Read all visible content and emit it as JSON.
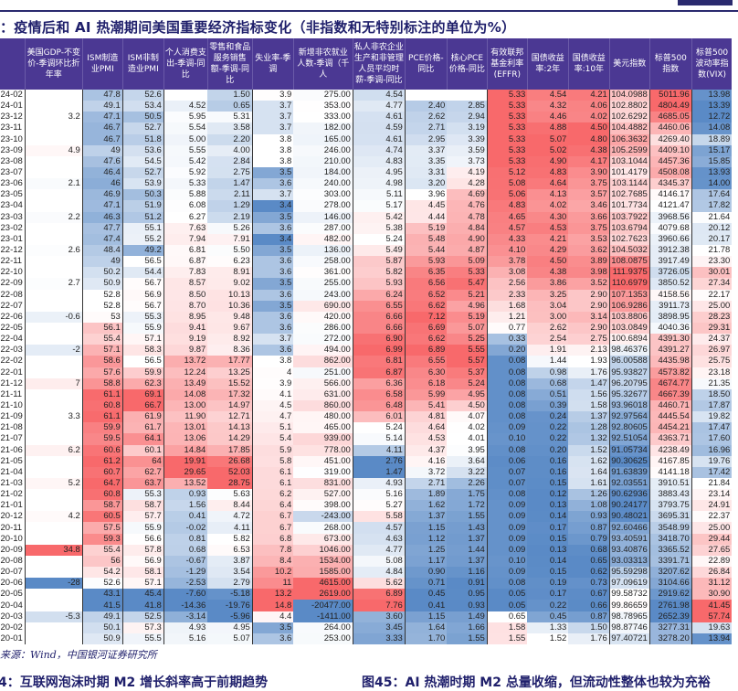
{
  "title": "：疫情后和 AI 热潮期间美国重要经济指标变化（非指数和无特别标注的单位为%）",
  "columns": [
    "",
    "美国GDP-不变价-季调环比折年率",
    "ISM制造业PMI",
    "ISM非制造业PMI",
    "个人消费支出-季调-同比",
    "零售和食品服务销售额-季调-同比",
    "失业率-季调",
    "新增非农就业人数-季调（千人",
    "私人非农企业生产和非管理人员平均时薪-季调-同比",
    "PCE价格-同比",
    "核心PCE价格-同比",
    "有效联邦基金利率(EFFR)",
    "国债收益率:2年",
    "国债收益率:10年",
    "美元指数",
    "标普500指数",
    "标普500波动率指数(VIX)"
  ],
  "rows": [
    [
      "24-02",
      "",
      "47.8",
      "52.6",
      "",
      "1.50",
      "3.9",
      "275.00",
      "4.54",
      "",
      "",
      "5.33",
      "4.54",
      "4.21",
      "104.0988",
      "5011.96",
      "13.98"
    ],
    [
      "24-01",
      "",
      "49.1",
      "53.4",
      "4.52",
      "0.65",
      "3.7",
      "353.00",
      "4.77",
      "2.40",
      "2.85",
      "5.33",
      "4.32",
      "4.06",
      "102.8802",
      "4804.49",
      "13.39"
    ],
    [
      "23-12",
      "3.2",
      "47.1",
      "50.5",
      "5.95",
      "5.31",
      "3.7",
      "333.00",
      "4.61",
      "2.62",
      "2.94",
      "5.33",
      "4.46",
      "4.02",
      "102.6292",
      "4685.05",
      "12.72"
    ],
    [
      "23-11",
      "",
      "46.7",
      "52.7",
      "5.54",
      "3.58",
      "3.7",
      "182.00",
      "4.59",
      "2.71",
      "3.19",
      "5.33",
      "4.88",
      "4.50",
      "104.4882",
      "4460.06",
      "14.08"
    ],
    [
      "23-10",
      "",
      "46.7",
      "51.8",
      "5.00",
      "2.20",
      "3.8",
      "165.00",
      "4.61",
      "2.95",
      "3.39",
      "5.33",
      "5.07",
      "4.80",
      "106.3632",
      "4269.40",
      "18.89"
    ],
    [
      "23-09",
      "4.9",
      "49",
      "53.6",
      "5.55",
      "4.00",
      "3.8",
      "246.00",
      "4.74",
      "3.37",
      "3.59",
      "5.33",
      "5.02",
      "4.38",
      "105.2599",
      "4409.10",
      "15.17"
    ],
    [
      "23-08",
      "",
      "47.6",
      "54.5",
      "5.42",
      "2.84",
      "3.8",
      "210.00",
      "4.83",
      "3.35",
      "3.73",
      "5.33",
      "4.90",
      "4.17",
      "103.1044",
      "4457.36",
      "15.85"
    ],
    [
      "23-07",
      "",
      "46.4",
      "52.7",
      "5.92",
      "2.75",
      "3.5",
      "184.00",
      "4.95",
      "3.31",
      "4.19",
      "5.12",
      "4.83",
      "3.90",
      "101.4179",
      "4508.08",
      "13.93"
    ],
    [
      "23-06",
      "2.1",
      "46",
      "53.9",
      "5.33",
      "1.47",
      "3.6",
      "240.00",
      "4.98",
      "3.20",
      "4.28",
      "5.08",
      "4.64",
      "3.75",
      "103.1144",
      "4345.37",
      "14.00"
    ],
    [
      "23-05",
      "",
      "46.9",
      "50.3",
      "5.88",
      "2.11",
      "3.7",
      "303.00",
      "5.11",
      "3.96",
      "4.69",
      "5.06",
      "4.13",
      "3.57",
      "102.7685",
      "4146.17",
      "17.64"
    ],
    [
      "23-04",
      "",
      "47.1",
      "51.9",
      "6.08",
      "1.29",
      "3.4",
      "278.00",
      "5.17",
      "4.45",
      "4.76",
      "4.83",
      "4.02",
      "3.46",
      "101.7734",
      "4121.47",
      "17.82"
    ],
    [
      "23-03",
      "2.2",
      "46.3",
      "51.2",
      "6.27",
      "2.19",
      "3.5",
      "146.00",
      "5.42",
      "4.44",
      "4.78",
      "4.65",
      "4.30",
      "3.66",
      "103.7922",
      "3968.56",
      "21.64"
    ],
    [
      "23-02",
      "",
      "47.7",
      "55.1",
      "7.63",
      "5.26",
      "3.6",
      "287.00",
      "5.38",
      "5.19",
      "4.84",
      "4.57",
      "4.53",
      "3.75",
      "103.6794",
      "4079.68",
      "20.12"
    ],
    [
      "23-01",
      "",
      "47.4",
      "55.2",
      "7.94",
      "7.91",
      "3.4",
      "482.00",
      "5.24",
      "5.48",
      "4.90",
      "4.33",
      "4.21",
      "3.53",
      "102.7623",
      "3960.66",
      "20.17"
    ],
    [
      "22-12",
      "2.6",
      "48.4",
      "49.2",
      "6.81",
      "5.50",
      "3.5",
      "136.00",
      "5.49",
      "5.44",
      "4.87",
      "4.10",
      "4.29",
      "3.62",
      "104.5032",
      "3912.38",
      "21.78"
    ],
    [
      "22-11",
      "",
      "49",
      "56.5",
      "6.87",
      "6.23",
      "3.6",
      "258.00",
      "5.87",
      "5.93",
      "5.09",
      "3.78",
      "4.50",
      "3.89",
      "108.0875",
      "3917.49",
      "23.30"
    ],
    [
      "22-10",
      "",
      "50.2",
      "54.4",
      "7.83",
      "8.91",
      "3.6",
      "361.00",
      "5.82",
      "6.35",
      "5.33",
      "3.08",
      "4.38",
      "3.98",
      "111.9375",
      "3726.05",
      "30.01"
    ],
    [
      "22-09",
      "2.7",
      "50.9",
      "56.7",
      "8.57",
      "9.02",
      "3.5",
      "255.00",
      "5.93",
      "6.56",
      "5.47",
      "2.56",
      "3.86",
      "3.52",
      "110.6979",
      "3850.52",
      "27.34"
    ],
    [
      "22-08",
      "",
      "52.8",
      "56.9",
      "8.50",
      "10.13",
      "3.6",
      "243.00",
      "6.24",
      "6.52",
      "5.21",
      "2.33",
      "3.25",
      "2.90",
      "107.1353",
      "4158.56",
      "22.17"
    ],
    [
      "22-07",
      "",
      "52.8",
      "56.7",
      "8.70",
      "10.36",
      "3.5",
      "690.00",
      "6.55",
      "6.62",
      "4.96",
      "1.68",
      "3.04",
      "2.90",
      "106.9286",
      "3911.73",
      "25.00"
    ],
    [
      "22-06",
      "-0.6",
      "53",
      "55.3",
      "8.95",
      "9.48",
      "3.6",
      "420.00",
      "6.66",
      "7.12",
      "5.19",
      "1.21",
      "3.00",
      "3.14",
      "103.8806",
      "3898.95",
      "28.23"
    ],
    [
      "22-05",
      "",
      "56.1",
      "55.9",
      "9.41",
      "9.67",
      "3.6",
      "286.00",
      "6.66",
      "6.69",
      "5.07",
      "0.77",
      "2.62",
      "2.90",
      "103.0849",
      "4040.36",
      "29.31"
    ],
    [
      "22-04",
      "",
      "55.4",
      "57.1",
      "9.19",
      "8.92",
      "3.7",
      "272.00",
      "6.90",
      "6.62",
      "5.25",
      "0.33",
      "2.54",
      "2.75",
      "100.6894",
      "4391.30",
      "24.37"
    ],
    [
      "22-03",
      "-2",
      "57.1",
      "58.3",
      "9.87",
      "8.36",
      "3.6",
      "494.00",
      "6.99",
      "6.89",
      "5.55",
      "0.20",
      "1.91",
      "2.13",
      "98.46376",
      "4391.27",
      "26.97"
    ],
    [
      "22-02",
      "",
      "58.6",
      "56.5",
      "13.72",
      "17.77",
      "3.8",
      "862.00",
      "6.81",
      "6.55",
      "5.57",
      "0.08",
      "1.44",
      "1.93",
      "96.00588",
      "4435.98",
      "25.75"
    ],
    [
      "22-01",
      "",
      "57.6",
      "59.9",
      "12.24",
      "13.25",
      "4",
      "251.00",
      "6.87",
      "6.30",
      "5.37",
      "0.08",
      "0.98",
      "1.76",
      "95.93827",
      "4573.82",
      "23.18"
    ],
    [
      "21-12",
      "7",
      "58.8",
      "62.3",
      "13.49",
      "15.52",
      "3.9",
      "566.00",
      "6.36",
      "6.18",
      "5.24",
      "0.08",
      "0.68",
      "1.47",
      "96.20795",
      "4674.77",
      "21.35"
    ],
    [
      "21-11",
      "",
      "61.1",
      "69.1",
      "14.08",
      "17.32",
      "4.1",
      "631.00",
      "6.58",
      "5.99",
      "4.95",
      "0.08",
      "0.51",
      "1.56",
      "95.32677",
      "4667.39",
      "18.50"
    ],
    [
      "21-10",
      "",
      "60.8",
      "66.7",
      "13.00",
      "14.97",
      "4.5",
      "860.00",
      "6.48",
      "5.41",
      "4.50",
      "0.08",
      "0.39",
      "1.58",
      "93.96018",
      "4460.71",
      "17.87"
    ],
    [
      "21-09",
      "3.3",
      "61.1",
      "61.9",
      "11.90",
      "12.71",
      "4.7",
      "480.00",
      "6.01",
      "4.81",
      "4.07",
      "0.08",
      "0.24",
      "1.37",
      "92.97564",
      "4445.54",
      "19.82"
    ],
    [
      "21-08",
      "",
      "59.9",
      "61.7",
      "13.01",
      "14.13",
      "5.1",
      "465.00",
      "5.24",
      "4.64",
      "4.02",
      "0.09",
      "0.22",
      "1.28",
      "92.80605",
      "4454.21",
      "17.47"
    ],
    [
      "21-07",
      "",
      "59.5",
      "64.1",
      "13.06",
      "14.29",
      "5.4",
      "939.00",
      "5.14",
      "4.53",
      "4.01",
      "0.10",
      "0.22",
      "1.32",
      "92.51054",
      "4363.71",
      "17.60"
    ],
    [
      "21-06",
      "6.2",
      "60.6",
      "60.1",
      "14.84",
      "17.85",
      "5.9",
      "778.00",
      "4.11",
      "4.37",
      "3.95",
      "0.08",
      "0.20",
      "1.52",
      "91.05734",
      "4238.49",
      "16.96"
    ],
    [
      "21-05",
      "",
      "61.2",
      "64",
      "19.91",
      "26.68",
      "5.8",
      "451.00",
      "2.76",
      "4.16",
      "3.64",
      "0.06",
      "0.16",
      "1.62",
      "90.30625",
      "4167.85",
      "19.76"
    ],
    [
      "21-04",
      "",
      "60.7",
      "62.7",
      "29.65",
      "52.03",
      "6.1",
      "319.00",
      "1.47",
      "3.72",
      "3.22",
      "0.07",
      "0.16",
      "1.64",
      "91.63839",
      "4141.18",
      "17.42"
    ],
    [
      "21-03",
      "5.2",
      "64.7",
      "63.7",
      "13.52",
      "28.75",
      "6.1",
      "831.00",
      "4.93",
      "2.71",
      "2.26",
      "0.07",
      "0.15",
      "1.61",
      "92.03551",
      "3910.51",
      "21.84"
    ],
    [
      "21-02",
      "",
      "60.8",
      "55.3",
      "0.93",
      "5.63",
      "6.2",
      "527.00",
      "5.16",
      "1.89",
      "1.75",
      "0.08",
      "0.12",
      "1.26",
      "90.62936",
      "3883.43",
      "23.14"
    ],
    [
      "21-01",
      "",
      "58.7",
      "58.7",
      "1.56",
      "8.44",
      "6.4",
      "398.00",
      "5.27",
      "1.62",
      "1.72",
      "0.09",
      "0.13",
      "1.08",
      "90.24177",
      "3793.75",
      "24.91"
    ],
    [
      "20-12",
      "4.2",
      "60.5",
      "57.7",
      "0.41",
      "4.72",
      "6.7",
      "-243.00",
      "5.58",
      "1.37",
      "1.55",
      "0.09",
      "0.14",
      "0.93",
      "90.48021",
      "3695.31",
      "22.37"
    ],
    [
      "20-11",
      "",
      "57.5",
      "55.9",
      "-0.02",
      "4.11",
      "6.7",
      "268.00",
      "4.57",
      "1.15",
      "1.43",
      "0.09",
      "0.17",
      "0.87",
      "92.60466",
      "3548.99",
      "25.00"
    ],
    [
      "20-10",
      "",
      "59.3",
      "56.6",
      "0.81",
      "5.82",
      "6.8",
      "673.00",
      "4.63",
      "1.12",
      "1.37",
      "0.09",
      "0.15",
      "0.79",
      "93.40591",
      "3418.70",
      "29.44"
    ],
    [
      "20-09",
      "34.8",
      "55.4",
      "57.8",
      "0.68",
      "6.53",
      "7.8",
      "1046.00",
      "4.77",
      "1.25",
      "1.44",
      "0.09",
      "0.13",
      "0.68",
      "93.40876",
      "3365.52",
      "27.65"
    ],
    [
      "20-08",
      "",
      "56",
      "56.9",
      "-0.67",
      "3.87",
      "8.4",
      "1534.00",
      "5.08",
      "1.17",
      "1.37",
      "0.10",
      "0.14",
      "0.65",
      "93.03313",
      "3391.71",
      "22.89"
    ],
    [
      "20-07",
      "",
      "54.2",
      "58.1",
      "-1.29",
      "3.54",
      "10.2",
      "1585.00",
      "4.84",
      "0.90",
      "1.16",
      "0.09",
      "0.15",
      "0.62",
      "95.59298",
      "3207.62",
      "26.84"
    ],
    [
      "20-06",
      "-28",
      "52.6",
      "57.1",
      "-2.53",
      "2.79",
      "11",
      "4615.00",
      "5.62",
      "0.71",
      "0.91",
      "0.08",
      "0.19",
      "0.73",
      "97.09619",
      "3104.66",
      "31.12"
    ],
    [
      "20-05",
      "",
      "43.1",
      "45.4",
      "-7.60",
      "-5.18",
      "13.2",
      "2619.00",
      "6.89",
      "0.45",
      "0.95",
      "0.05",
      "0.17",
      "0.67",
      "99.58732",
      "2919.62",
      "30.90"
    ],
    [
      "20-04",
      "",
      "41.5",
      "41.8",
      "-14.36",
      "-19.76",
      "14.8",
      "-20477.00",
      "7.76",
      "0.41",
      "0.93",
      "0.05",
      "0.22",
      "0.66",
      "99.86659",
      "2761.98",
      "41.45"
    ],
    [
      "20-03",
      "-5.3",
      "49.1",
      "52.5",
      "-3.14",
      "-5.96",
      "4.4",
      "-1411.00",
      "3.60",
      "1.15",
      "1.49",
      "0.65",
      "0.45",
      "0.87",
      "98.78965",
      "2652.39",
      "57.74"
    ],
    [
      "20-02",
      "",
      "50.1",
      "57.3",
      "4.93",
      "4.95",
      "3.5",
      "264.00",
      "3.45",
      "1.64",
      "1.66",
      "1.58",
      "1.33",
      "1.50",
      "98.87746",
      "3277.31",
      "19.63"
    ],
    [
      "20-01",
      "",
      "50.9",
      "55.5",
      "5.16",
      "5.07",
      "3.6",
      "253.00",
      "3.33",
      "1.70",
      "1.55",
      "1.55",
      "1.52",
      "1.76",
      "97.40721",
      "3278.20",
      "13.94"
    ]
  ],
  "source": "来源：Wind，中国银河证券研究所",
  "caption_left": "4：互联网泡沫时期 M2 增长斜率高于前期趋势",
  "caption_right": "图45：AI 热潮时期 M2 总量收缩，但流动性整体也较为充裕",
  "colors": {
    "high": "#F8696B",
    "mid": "#FFFFFF",
    "low": "#5A8AC6",
    "header": "#4B3893",
    "title": "#1F1F6B"
  }
}
